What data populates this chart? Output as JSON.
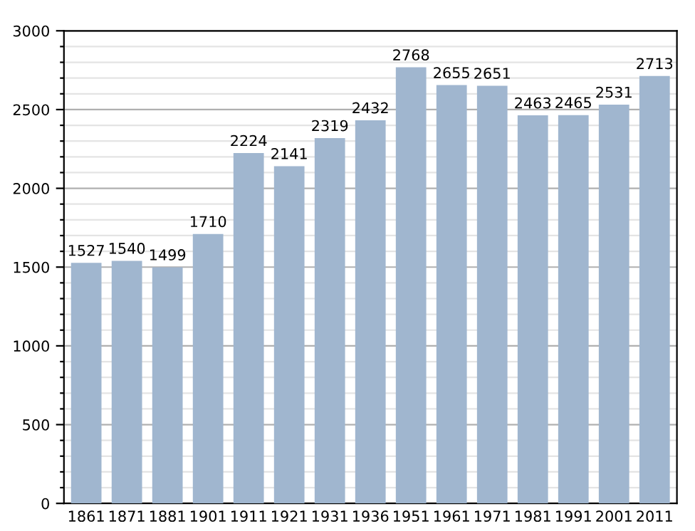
{
  "chart_data": {
    "type": "bar",
    "categories": [
      "1861",
      "1871",
      "1881",
      "1901",
      "1911",
      "1921",
      "1931",
      "1936",
      "1951",
      "1961",
      "1971",
      "1981",
      "1991",
      "2001",
      "2011"
    ],
    "values": [
      1527,
      1540,
      1499,
      1710,
      2224,
      2141,
      2319,
      2432,
      2768,
      2655,
      2651,
      2463,
      2465,
      2531,
      2713
    ],
    "color": "#a0b6cf",
    "ylim": [
      0,
      3000
    ],
    "yticks": [
      0,
      {
        "value": 100,
        "label": null
      },
      {
        "value": 200,
        "label": null
      },
      {
        "value": 300,
        "label": null
      },
      {
        "value": 400,
        "label": null
      },
      500,
      {
        "value": 600,
        "label": null
      },
      {
        "value": 700,
        "label": null
      },
      {
        "value": 800,
        "label": null
      },
      {
        "value": 900,
        "label": null
      },
      1000,
      {
        "value": 1100,
        "label": null
      },
      {
        "value": 1200,
        "label": null
      },
      {
        "value": 1300,
        "label": null
      },
      {
        "value": 1400,
        "label": null
      },
      1500,
      {
        "value": 1600,
        "label": null
      },
      {
        "value": 1700,
        "label": null
      },
      {
        "value": 1800,
        "label": null
      },
      {
        "value": 1900,
        "label": null
      },
      2000,
      {
        "value": 2100,
        "label": null
      },
      {
        "value": 2200,
        "label": null
      },
      {
        "value": 2300,
        "label": null
      },
      {
        "value": 2400,
        "label": null
      },
      2500,
      {
        "value": 2600,
        "label": null
      },
      {
        "value": 2700,
        "label": null
      },
      {
        "value": 2800,
        "label": null
      },
      {
        "value": 2900,
        "label": null
      },
      3000
    ],
    "grid": "y",
    "data_labels": true
  }
}
